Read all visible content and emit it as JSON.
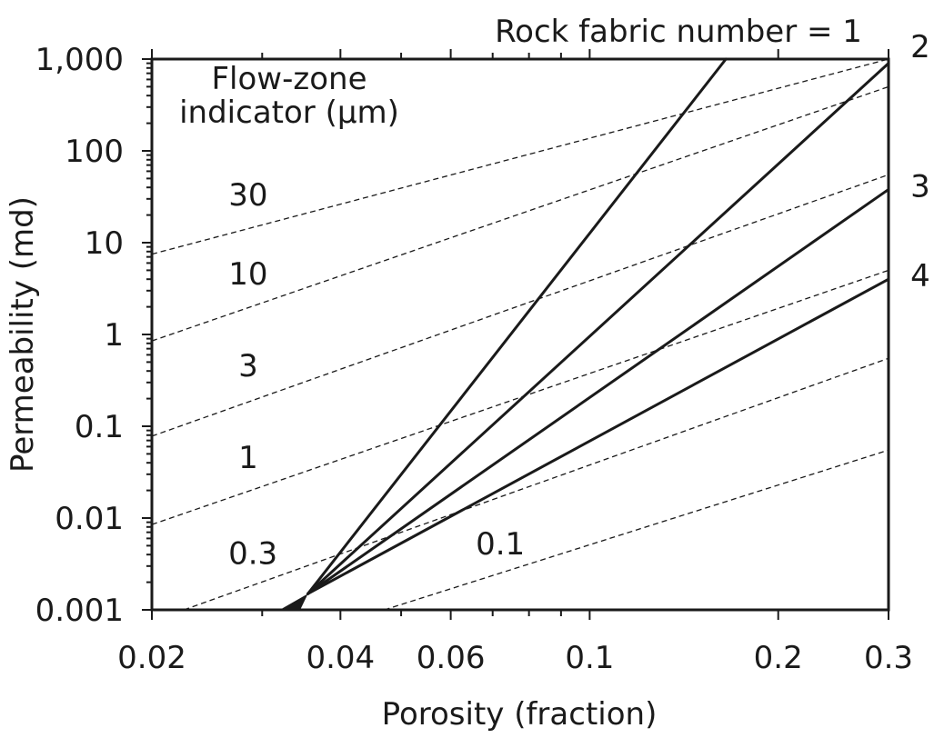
{
  "chart_data": {
    "type": "line",
    "xscale": "log",
    "yscale": "log",
    "xlim": [
      0.02,
      0.3
    ],
    "ylim": [
      0.001,
      1000
    ],
    "xlabel": "Porosity (fraction)",
    "ylabel": "Permeability (md)",
    "grid": false,
    "x_tick_labels": [
      {
        "value": 0.02,
        "label": "0.02"
      },
      {
        "value": 0.04,
        "label": "0.04"
      },
      {
        "value": 0.06,
        "label": "0.06"
      },
      {
        "value": 0.1,
        "label": "0.1"
      },
      {
        "value": 0.2,
        "label": "0.2"
      },
      {
        "value": 0.3,
        "label": "0.3"
      }
    ],
    "y_tick_labels": [
      {
        "value": 1000,
        "label": "1,000"
      },
      {
        "value": 100,
        "label": "100"
      },
      {
        "value": 10,
        "label": "10"
      },
      {
        "value": 1,
        "label": "1"
      },
      {
        "value": 0.1,
        "label": "0.1"
      },
      {
        "value": 0.01,
        "label": "0.01"
      },
      {
        "value": 0.001,
        "label": "0.001"
      }
    ],
    "fzi_group_title": [
      "Flow-zone",
      "indicator (µm)"
    ],
    "rfn_group_title": "Rock fabric number =",
    "flow_zone_indicator_lines": [
      {
        "label": "30",
        "x": [
          0.02,
          0.3
        ],
        "y": [
          7.5,
          1000
        ]
      },
      {
        "label": "10",
        "x": [
          0.02,
          0.3
        ],
        "y": [
          0.85,
          500
        ]
      },
      {
        "label": "3",
        "x": [
          0.02,
          0.3
        ],
        "y": [
          0.078,
          55
        ]
      },
      {
        "label": "1",
        "x": [
          0.02,
          0.3
        ],
        "y": [
          0.0085,
          5
        ]
      },
      {
        "label": "0.3",
        "x": [
          0.0225,
          0.3
        ],
        "y": [
          0.001,
          0.55
        ]
      },
      {
        "label": "0.1",
        "x": [
          0.047,
          0.3
        ],
        "y": [
          0.001,
          0.055
        ]
      }
    ],
    "rock_fabric_lines": [
      {
        "label": "1",
        "x": [
          0.0355,
          0.165
        ],
        "y": [
          0.0015,
          1000
        ]
      },
      {
        "label": "2",
        "x": [
          0.0355,
          0.3
        ],
        "y": [
          0.0015,
          900
        ]
      },
      {
        "label": "3",
        "x": [
          0.0355,
          0.3
        ],
        "y": [
          0.0015,
          38
        ]
      },
      {
        "label": "4",
        "x": [
          0.0355,
          0.3
        ],
        "y": [
          0.0015,
          4
        ]
      }
    ],
    "rock_fabric_origin_wedge": {
      "x": [
        0.032,
        0.0355,
        0.0345
      ],
      "y": [
        0.001,
        0.0015,
        0.001
      ]
    }
  }
}
